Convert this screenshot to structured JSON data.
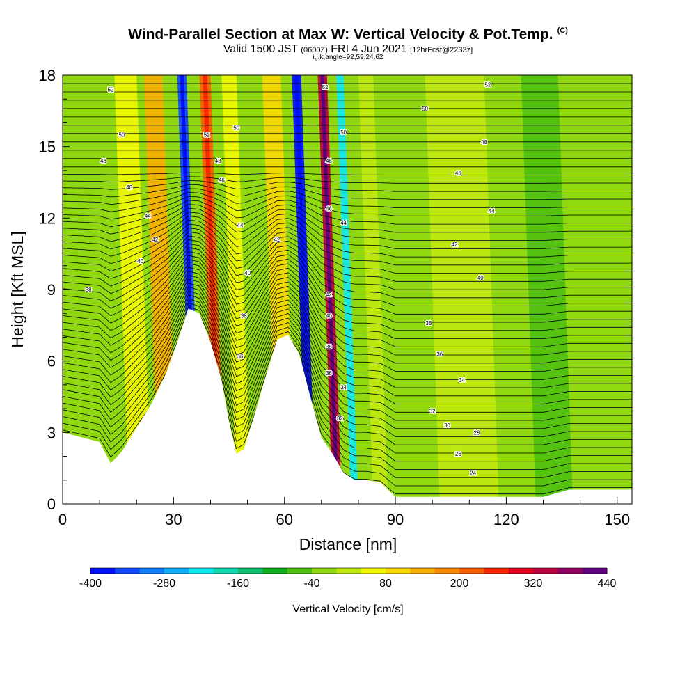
{
  "header": {
    "title": "Wind-Parallel Section at Max W: Vertical Velocity & Pot.Temp.",
    "title_mark": "(C)",
    "valid_prefix": "Valid 1500 JST",
    "valid_utc": "(0600Z)",
    "valid_date": "FRI 4 Jun 2021",
    "forecast": "[12hrFcst@2233z]",
    "indices": "i,j,k,angle=92,59,24,62"
  },
  "chart_data": {
    "type": "heatmap",
    "xlabel": "Distance [nm]",
    "ylabel": "Height [Kft MSL]",
    "xlim": [
      0,
      154
    ],
    "ylim": [
      0,
      18
    ],
    "x_ticks": [
      "0",
      "30",
      "60",
      "90",
      "120",
      "150"
    ],
    "y_ticks": [
      "0",
      "3",
      "6",
      "9",
      "12",
      "15",
      "18"
    ],
    "terrain": {
      "x": [
        0,
        10,
        13,
        16,
        20,
        24,
        28,
        31,
        34,
        37,
        40,
        43,
        45,
        47,
        49,
        52,
        55,
        58,
        61,
        64,
        67,
        70,
        73,
        76,
        79,
        82,
        86,
        90,
        100,
        110,
        120,
        130,
        137,
        145,
        154
      ],
      "height": [
        3.0,
        2.6,
        1.7,
        2.2,
        3.2,
        4.2,
        5.5,
        6.8,
        8.2,
        8.0,
        6.8,
        5.2,
        3.5,
        2.1,
        2.3,
        3.8,
        5.4,
        6.9,
        7.1,
        6.3,
        4.5,
        2.8,
        2.1,
        1.3,
        1.0,
        1.0,
        0.9,
        0.3,
        0.3,
        0.3,
        0.3,
        0.3,
        0.6,
        0.6,
        0.6
      ]
    },
    "vertical_velocity_bands": [
      {
        "x": 18,
        "w": 6,
        "value": 100
      },
      {
        "x": 26,
        "w": 5,
        "value": 180
      },
      {
        "x": 35,
        "w": 2.5,
        "value": -330
      },
      {
        "x": 41,
        "w": 3,
        "value": 280
      },
      {
        "x": 47,
        "w": 4,
        "value": 90
      },
      {
        "x": 58,
        "w": 5,
        "value": 140
      },
      {
        "x": 66,
        "w": 2.5,
        "value": -380
      },
      {
        "x": 73,
        "w": 2.5,
        "value": 420
      },
      {
        "x": 78,
        "w": 2,
        "value": -200
      },
      {
        "x": 84,
        "w": 4,
        "value": 60
      },
      {
        "x": 102,
        "w": 16,
        "value": 60
      },
      {
        "x": 128,
        "w": 10,
        "value": -10
      }
    ],
    "theta_contour_labels": [
      {
        "value": "52",
        "x": 13,
        "y": 17.4
      },
      {
        "value": "50",
        "x": 16,
        "y": 15.5
      },
      {
        "value": "48",
        "x": 11,
        "y": 14.4
      },
      {
        "value": "48",
        "x": 18,
        "y": 13.3
      },
      {
        "value": "44",
        "x": 23,
        "y": 12.1
      },
      {
        "value": "42",
        "x": 25,
        "y": 11.1
      },
      {
        "value": "40",
        "x": 21,
        "y": 10.2
      },
      {
        "value": "38",
        "x": 7,
        "y": 9.0
      },
      {
        "value": "52",
        "x": 39,
        "y": 15.5
      },
      {
        "value": "50",
        "x": 47,
        "y": 15.8
      },
      {
        "value": "48",
        "x": 42,
        "y": 14.4
      },
      {
        "value": "46",
        "x": 43,
        "y": 13.6
      },
      {
        "value": "44",
        "x": 48,
        "y": 11.7
      },
      {
        "value": "42",
        "x": 58,
        "y": 11.1
      },
      {
        "value": "40",
        "x": 50,
        "y": 9.7
      },
      {
        "value": "38",
        "x": 49,
        "y": 7.9
      },
      {
        "value": "36",
        "x": 48,
        "y": 6.2
      },
      {
        "value": "52",
        "x": 71,
        "y": 17.5
      },
      {
        "value": "50",
        "x": 76,
        "y": 15.6
      },
      {
        "value": "48",
        "x": 72,
        "y": 14.4
      },
      {
        "value": "46",
        "x": 72,
        "y": 12.4
      },
      {
        "value": "44",
        "x": 76,
        "y": 11.8
      },
      {
        "value": "42",
        "x": 72,
        "y": 8.8
      },
      {
        "value": "40",
        "x": 72,
        "y": 7.9
      },
      {
        "value": "38",
        "x": 72,
        "y": 6.6
      },
      {
        "value": "36",
        "x": 72,
        "y": 5.5
      },
      {
        "value": "34",
        "x": 76,
        "y": 4.9
      },
      {
        "value": "32",
        "x": 75,
        "y": 3.6
      },
      {
        "value": "52",
        "x": 115,
        "y": 17.6
      },
      {
        "value": "50",
        "x": 98,
        "y": 16.6
      },
      {
        "value": "48",
        "x": 114,
        "y": 15.2
      },
      {
        "value": "46",
        "x": 107,
        "y": 13.9
      },
      {
        "value": "44",
        "x": 116,
        "y": 12.3
      },
      {
        "value": "42",
        "x": 106,
        "y": 10.9
      },
      {
        "value": "40",
        "x": 113,
        "y": 9.5
      },
      {
        "value": "38",
        "x": 99,
        "y": 7.6
      },
      {
        "value": "36",
        "x": 102,
        "y": 6.3
      },
      {
        "value": "34",
        "x": 108,
        "y": 5.2
      },
      {
        "value": "32",
        "x": 100,
        "y": 3.9
      },
      {
        "value": "30",
        "x": 104,
        "y": 3.3
      },
      {
        "value": "28",
        "x": 112,
        "y": 3.0
      },
      {
        "value": "26",
        "x": 107,
        "y": 2.1
      },
      {
        "value": "24",
        "x": 111,
        "y": 1.3
      }
    ]
  },
  "colorbar": {
    "title": "Vertical Velocity [cm/s]",
    "tick_labels": [
      "-400",
      "-280",
      "-160",
      "-40",
      "80",
      "200",
      "320",
      "440"
    ],
    "colors": [
      "#0010ff",
      "#1048ff",
      "#1080ff",
      "#10b0ff",
      "#10e8f0",
      "#10d8b0",
      "#10c070",
      "#10b020",
      "#50c010",
      "#90d810",
      "#c0e810",
      "#f0f800",
      "#f8d800",
      "#f8b000",
      "#f88800",
      "#f86000",
      "#f82800",
      "#e00020",
      "#b80040",
      "#900060",
      "#600080"
    ]
  }
}
